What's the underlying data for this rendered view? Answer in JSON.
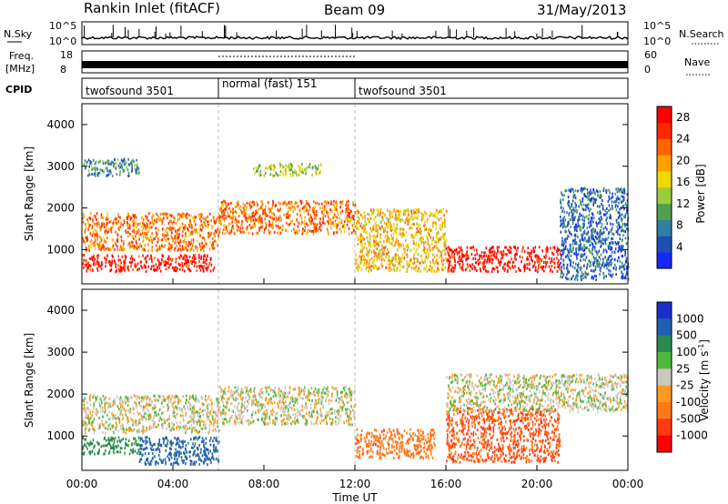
{
  "header": {
    "station": "Rankin Inlet (fitACF)",
    "beam": "Beam 09",
    "date": "31/May/2013"
  },
  "status_panel": {
    "nsky_label": "N.Sky",
    "nsky_ticks": [
      "10^5",
      "10^0"
    ],
    "nsearch_label": "N.Search",
    "freq_label_line1": "Freq.",
    "freq_label_line2": "[MHz]",
    "freq_ticks": [
      "18",
      "8"
    ],
    "nave_label": "Nave",
    "nave_ticks": [
      "60",
      "0"
    ],
    "cpid_label": "CPID",
    "cpid_segments": [
      {
        "label": "twofsound 3501",
        "start_hr": 0,
        "end_hr": 6
      },
      {
        "label": "normal (fast) 151",
        "start_hr": 6,
        "end_hr": 12
      },
      {
        "label": "twofsound 3501",
        "start_hr": 12,
        "end_hr": 24
      }
    ]
  },
  "colors": {
    "power_scale": [
      "#1428ff",
      "#1e50b4",
      "#2f7fa0",
      "#50a050",
      "#9ccc3c",
      "#f0d800",
      "#ffa000",
      "#ff6400",
      "#ff2800",
      "#ff0000"
    ],
    "velocity_scale": [
      "#1a2fc8",
      "#2060b0",
      "#2a8a50",
      "#50b83c",
      "#c8c8c0",
      "#ff9a20",
      "#ff7818",
      "#ff3a10",
      "#ff0000"
    ]
  },
  "chart_data": [
    {
      "type": "heatmap",
      "panel": "power",
      "xlabel": "Time UT",
      "ylabel": "Slant Range [km]",
      "x_ticks": [
        "00:00",
        "04:00",
        "08:00",
        "12:00",
        "16:00",
        "20:00",
        "00:00"
      ],
      "xlim_hours": [
        0,
        24
      ],
      "y_ticks": [
        1000,
        2000,
        3000,
        4000
      ],
      "ylim": [
        180,
        4500
      ],
      "colorbar_label": "Power [dB]",
      "colorbar_ticks": [
        4,
        8,
        12,
        16,
        20,
        24,
        28
      ],
      "colorbar_range": [
        0,
        30
      ],
      "echo_bands": [
        {
          "t_start": 0.0,
          "t_end": 5.8,
          "r_low": 500,
          "r_high": 900,
          "power": 28
        },
        {
          "t_start": 0.0,
          "t_end": 6.0,
          "r_low": 1000,
          "r_high": 1900,
          "power": 22
        },
        {
          "t_start": 0.0,
          "t_end": 2.5,
          "r_low": 2800,
          "r_high": 3200,
          "power": 8
        },
        {
          "t_start": 6.0,
          "t_end": 12.0,
          "r_low": 1400,
          "r_high": 2200,
          "power": 22
        },
        {
          "t_start": 7.5,
          "t_end": 10.5,
          "r_low": 2800,
          "r_high": 3100,
          "power": 14
        },
        {
          "t_start": 12.0,
          "t_end": 16.0,
          "r_low": 500,
          "r_high": 2000,
          "power": 18
        },
        {
          "t_start": 16.0,
          "t_end": 21.0,
          "r_low": 500,
          "r_high": 1100,
          "power": 28
        },
        {
          "t_start": 21.0,
          "t_end": 24.0,
          "r_low": 300,
          "r_high": 2500,
          "power": 6
        }
      ]
    },
    {
      "type": "heatmap",
      "panel": "velocity",
      "xlabel": "Time UT",
      "ylabel": "Slant Range [km]",
      "x_ticks": [
        "00:00",
        "04:00",
        "08:00",
        "12:00",
        "16:00",
        "20:00",
        "00:00"
      ],
      "xlim_hours": [
        0,
        24
      ],
      "y_ticks": [
        1000,
        2000,
        3000,
        4000
      ],
      "ylim": [
        180,
        4500
      ],
      "colorbar_label": "Velocity [m s^-1]",
      "colorbar_ticks": [
        "1000",
        "500",
        "100",
        "25",
        "-25",
        "-100",
        "-500",
        "-1000"
      ],
      "echo_bands": [
        {
          "t_start": 0.0,
          "t_end": 2.5,
          "r_low": 600,
          "r_high": 1000,
          "velocity": 150
        },
        {
          "t_start": 2.5,
          "t_end": 6.0,
          "r_low": 350,
          "r_high": 1000,
          "velocity": 300
        },
        {
          "t_start": 0.0,
          "t_end": 6.0,
          "r_low": 1100,
          "r_high": 2000,
          "velocity": 0
        },
        {
          "t_start": 6.0,
          "t_end": 12.0,
          "r_low": 1300,
          "r_high": 2200,
          "velocity": 0
        },
        {
          "t_start": 12.0,
          "t_end": 15.5,
          "r_low": 500,
          "r_high": 1200,
          "velocity": -200
        },
        {
          "t_start": 16.0,
          "t_end": 21.0,
          "r_low": 400,
          "r_high": 1700,
          "velocity": -250
        },
        {
          "t_start": 16.0,
          "t_end": 24.0,
          "r_low": 1600,
          "r_high": 2500,
          "velocity": 0
        }
      ]
    }
  ]
}
